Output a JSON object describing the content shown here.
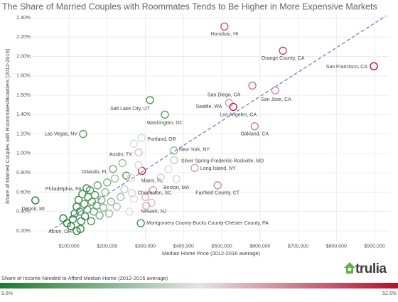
{
  "chart_data": {
    "type": "scatter",
    "title": "The Share of Married Couples with Roommates Tends to Be Higher in More Expensive Markets",
    "x_label": "Median Home Price (2012-2016 average)",
    "y_label": "Share of Married Couples with Roommates/Boarders (2012-2016)",
    "logo": "trulia",
    "xlim": [
      5000,
      940000
    ],
    "ylim": [
      0.1,
      2.45
    ],
    "xticks": [
      {
        "value": 100000,
        "label": "$100,000"
      },
      {
        "value": 200000,
        "label": "$200,000"
      },
      {
        "value": 300000,
        "label": "$300,000"
      },
      {
        "value": 400000,
        "label": "$400,000"
      },
      {
        "value": 500000,
        "label": "$500,000"
      },
      {
        "value": 600000,
        "label": "$600,000"
      },
      {
        "value": 700000,
        "label": "$700,000"
      },
      {
        "value": 800000,
        "label": "$800,000"
      },
      {
        "value": 900000,
        "label": "$900,000"
      }
    ],
    "yticks": [
      {
        "value": 0.2,
        "label": "0.20%"
      },
      {
        "value": 0.4,
        "label": "0.40%"
      },
      {
        "value": 0.6,
        "label": "0.60%"
      },
      {
        "value": 0.8,
        "label": "0.80%"
      },
      {
        "value": 1.0,
        "label": "1.00%"
      },
      {
        "value": 1.2,
        "label": "1.20%"
      },
      {
        "value": 1.4,
        "label": "1.40%"
      },
      {
        "value": 1.6,
        "label": "1.60%"
      },
      {
        "value": 1.8,
        "label": "1.80%"
      },
      {
        "value": 2.0,
        "label": "2.00%"
      },
      {
        "value": 2.2,
        "label": "2.20%"
      },
      {
        "value": 2.4,
        "label": "2.40%"
      }
    ],
    "grid": true,
    "trendline": {
      "x": [
        50000,
        930000
      ],
      "y": [
        0.2,
        2.42
      ],
      "color": "#6d6de0"
    },
    "colorbar": {
      "title": "Share of Income Needed to Afford Median Home (2012-2016 average)",
      "min": {
        "value": 9.6,
        "label": "9.6%"
      },
      "max": {
        "value": 52.6,
        "label": "52.6%"
      },
      "colors": [
        "#1f7a30",
        "#e4e4e4",
        "#b3102c"
      ]
    },
    "labels": [
      "Honolulu, HI",
      "Orange County, CA",
      "San Francisco, CA",
      "San Diego, CA",
      "San Jose, CA",
      "Seattle, WA",
      "Los Angeles, CA",
      "Oakland, CA",
      "Salt Lake City, UT",
      "Washington, DC",
      "Las Vegas, NV",
      "Portland, OR",
      "New York, NY",
      "Austin, TX",
      "Silver Spring-Frederick-Rockville, MD",
      "Long Island, NY",
      "Orlando, FL",
      "Miami, FL",
      "Boston, MA",
      "Fairfield County, CT",
      "Philadelphia, PA",
      "Charleston, SC",
      "Detroit, MI",
      "Akron, OH",
      "Newark, NJ",
      "Montgomery County-Bucks County-Chester County, PA",
      null,
      null,
      null,
      null,
      null,
      null,
      null,
      null,
      null,
      null,
      null,
      null,
      null,
      null,
      null,
      null,
      null,
      null,
      null,
      null,
      null,
      null,
      null,
      null,
      null,
      null,
      null,
      null,
      null,
      null,
      null,
      null,
      null,
      null,
      null,
      null,
      null,
      null,
      null,
      null,
      null,
      null,
      null,
      null,
      null
    ],
    "x": [
      507000,
      660000,
      898000,
      580000,
      640000,
      519000,
      530000,
      586000,
      312000,
      351000,
      137000,
      290000,
      375000,
      282000,
      375000,
      429000,
      250000,
      291000,
      381000,
      489000,
      146000,
      265000,
      12000,
      120000,
      316000,
      288000,
      110000,
      115000,
      120000,
      125000,
      128000,
      132000,
      135000,
      140000,
      142000,
      148000,
      150000,
      155000,
      158000,
      160000,
      165000,
      168000,
      172000,
      175000,
      180000,
      185000,
      190000,
      195000,
      200000,
      205000,
      210000,
      215000,
      220000,
      225000,
      235000,
      240000,
      245000,
      258000,
      262000,
      270000,
      282000,
      300000,
      320000,
      340000,
      360000,
      105000,
      95000,
      130000,
      85000,
      270000,
      302000
    ],
    "values": [
      2.31,
      2.06,
      1.9,
      1.7,
      1.65,
      1.52,
      1.48,
      1.28,
      1.55,
      1.4,
      1.2,
      1.16,
      1.03,
      1.01,
      0.93,
      0.85,
      0.77,
      0.82,
      0.735,
      0.67,
      0.64,
      0.59,
      0.515,
      0.2,
      0.49,
      0.28,
      0.32,
      0.38,
      0.45,
      0.52,
      0.4,
      0.3,
      0.58,
      0.48,
      0.35,
      0.42,
      0.55,
      0.62,
      0.3,
      0.5,
      0.4,
      0.57,
      0.46,
      0.67,
      0.36,
      0.52,
      0.44,
      0.6,
      0.7,
      0.38,
      0.5,
      0.84,
      0.74,
      0.45,
      0.55,
      0.9,
      0.63,
      0.4,
      0.75,
      0.53,
      0.88,
      0.55,
      0.62,
      0.75,
      0.84,
      0.25,
      0.28,
      0.22,
      0.33,
      1.1,
      0.46
    ],
    "color_values": [
      45,
      47,
      52.6,
      43,
      40,
      38,
      51,
      41,
      14,
      16,
      16,
      29,
      22,
      35,
      27,
      38,
      16,
      50,
      33,
      40,
      13,
      33,
      9.6,
      10,
      35,
      14,
      12,
      13,
      12,
      13,
      14,
      13,
      14,
      15,
      14,
      16,
      15,
      14,
      15,
      17,
      18,
      16,
      17,
      18,
      19,
      20,
      21,
      22,
      20,
      23,
      22,
      19,
      24,
      25,
      24,
      23,
      27,
      30,
      33,
      30,
      29,
      36,
      38,
      28,
      30,
      11,
      10,
      12,
      11,
      30,
      37
    ]
  }
}
